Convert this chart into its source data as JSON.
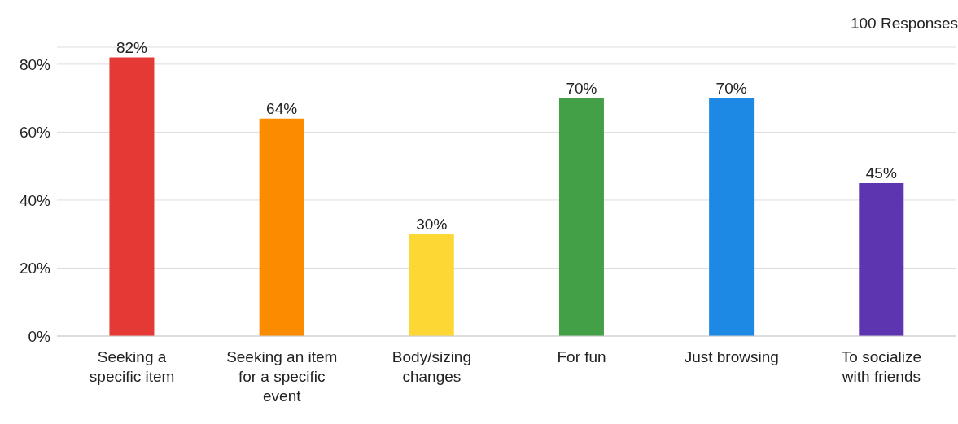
{
  "chart_data": {
    "type": "bar",
    "annotations": [
      "100 Responses"
    ],
    "categories": [
      "Seeking a specific item",
      "Seeking an item for a specific event",
      "Body/sizing changes",
      "For fun",
      "Just browsing",
      "To socialize with friends"
    ],
    "values": [
      82,
      64,
      30,
      70,
      70,
      45
    ],
    "colors": [
      "#e53935",
      "#fb8c00",
      "#fdd835",
      "#43a047",
      "#1e88e5",
      "#5e35b1"
    ],
    "value_labels": [
      "82%",
      "64%",
      "30%",
      "70%",
      "70%",
      "45%"
    ],
    "ylim": [
      0,
      85
    ],
    "yticks": [
      {
        "value": 0,
        "label": "0%"
      },
      {
        "value": 20,
        "label": "20%"
      },
      {
        "value": 40,
        "label": "40%"
      },
      {
        "value": 60,
        "label": "60%"
      },
      {
        "value": 80,
        "label": "80%"
      }
    ],
    "grid": "y",
    "legend": false
  }
}
